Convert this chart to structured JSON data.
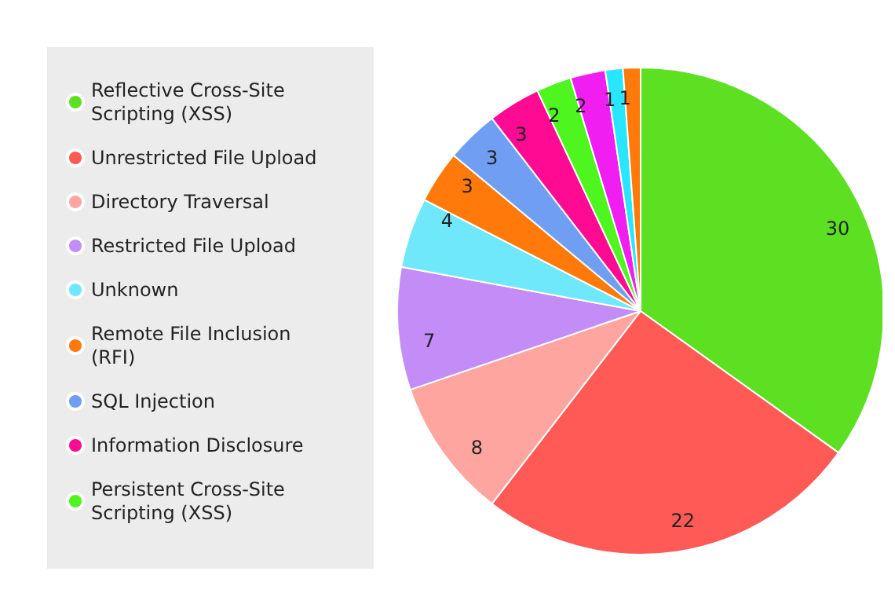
{
  "chart_data": {
    "type": "pie",
    "categories": [
      "Reflective Cross-Site Scripting (XSS)",
      "Unrestricted File Upload",
      "Directory Traversal",
      "Restricted File Upload",
      "Unknown",
      "Remote File Inclusion (RFI)",
      "SQL Injection",
      "Information Disclosure",
      "Persistent Cross-Site Scripting (XSS)",
      null,
      null,
      null
    ],
    "values": [
      30,
      22,
      8,
      7,
      4,
      3,
      3,
      3,
      2,
      2,
      1,
      1
    ],
    "colors": [
      "#5ce021",
      "#ff5a55",
      "#ffa59f",
      "#c38cf7",
      "#70e8fb",
      "#ff7a0a",
      "#6f9ef2",
      "#ff0b93",
      "#4ef51e",
      "#f01ef0",
      "#28e6ff",
      "#ff7a0a"
    ],
    "data_labels": true,
    "legend": "left"
  }
}
